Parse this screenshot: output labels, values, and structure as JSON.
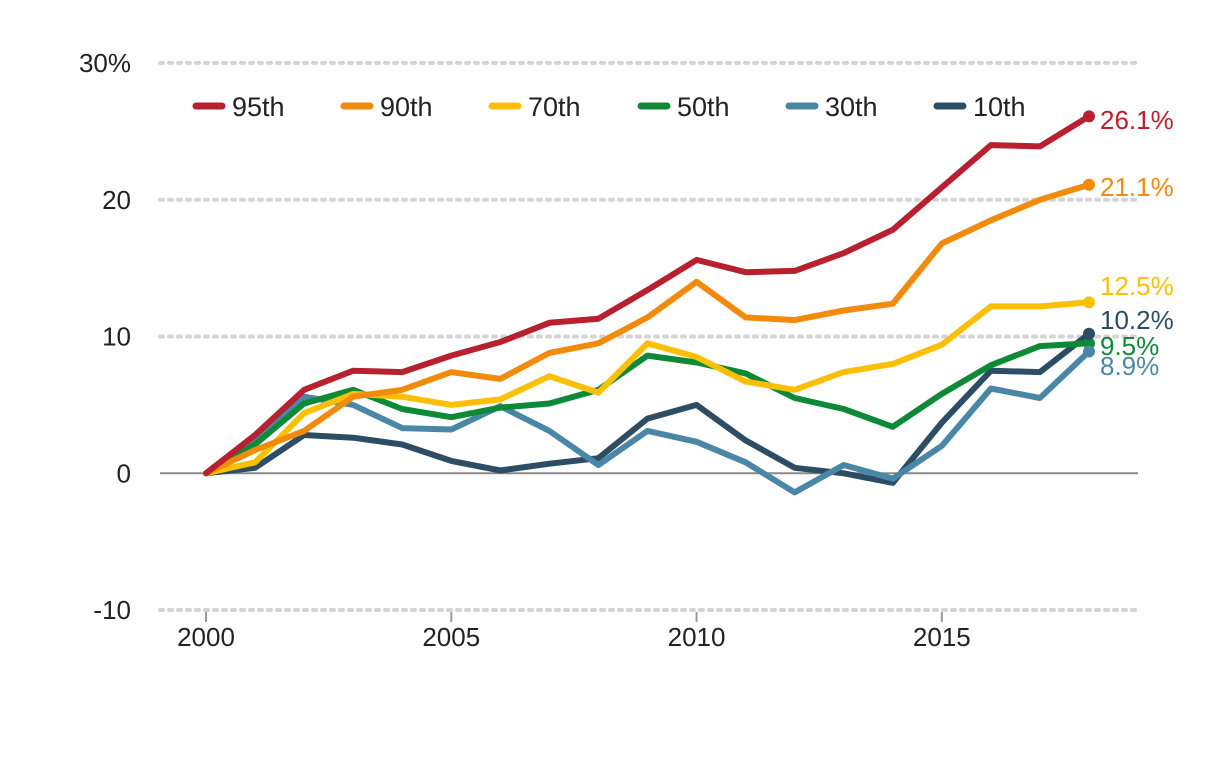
{
  "chart_data": {
    "type": "line",
    "title": "",
    "xlabel": "",
    "ylabel": "",
    "x": [
      2000,
      2001,
      2002,
      2003,
      2004,
      2005,
      2006,
      2007,
      2008,
      2009,
      2010,
      2011,
      2012,
      2013,
      2014,
      2015,
      2016,
      2017,
      2018
    ],
    "xlim": [
      1999,
      2019
    ],
    "ylim": [
      -10,
      30
    ],
    "x_ticks": [
      {
        "value": 2000,
        "label": "2000"
      },
      {
        "value": 2005,
        "label": "2005"
      },
      {
        "value": 2010,
        "label": "2010"
      },
      {
        "value": 2015,
        "label": "2015"
      }
    ],
    "y_ticks": [
      {
        "value": 30,
        "label": "30%"
      },
      {
        "value": 20,
        "label": "20"
      },
      {
        "value": 10,
        "label": "10"
      },
      {
        "value": 0,
        "label": "0"
      },
      {
        "value": -10,
        "label": "-10"
      }
    ],
    "grid": true,
    "legend_position": "top-left",
    "series": [
      {
        "name": "95th",
        "color": "#b8202f",
        "end_label": "26.1%",
        "values": [
          0,
          2.8,
          6.1,
          7.5,
          7.4,
          8.6,
          9.6,
          11.0,
          11.3,
          13.4,
          15.6,
          14.7,
          14.8,
          16.1,
          17.8,
          20.9,
          24.0,
          23.9,
          26.1
        ]
      },
      {
        "name": "90th",
        "color": "#f28a0c",
        "end_label": "21.1%",
        "values": [
          0,
          1.7,
          3.1,
          5.6,
          6.1,
          7.4,
          6.9,
          8.8,
          9.5,
          11.4,
          14.0,
          11.4,
          11.2,
          11.9,
          12.4,
          16.8,
          18.5,
          20.0,
          21.1
        ]
      },
      {
        "name": "70th",
        "color": "#fbbf05",
        "end_label": "12.5%",
        "values": [
          0,
          0.8,
          4.4,
          5.8,
          5.6,
          5.0,
          5.4,
          7.1,
          5.9,
          9.5,
          8.5,
          6.7,
          6.1,
          7.4,
          8.0,
          9.4,
          12.2,
          12.2,
          12.5
        ]
      },
      {
        "name": "50th",
        "color": "#0e8a37",
        "end_label": "9.5%",
        "values": [
          0,
          2.1,
          5.1,
          6.1,
          4.7,
          4.1,
          4.8,
          5.1,
          6.1,
          8.6,
          8.1,
          7.3,
          5.5,
          4.7,
          3.4,
          5.8,
          7.9,
          9.3,
          9.5
        ]
      },
      {
        "name": "30th",
        "color": "#4a87a7",
        "end_label": "8.9%",
        "values": [
          0,
          2.4,
          5.6,
          5.0,
          3.3,
          3.2,
          4.9,
          3.1,
          0.6,
          3.1,
          2.3,
          0.8,
          -1.4,
          0.6,
          -0.4,
          2.0,
          6.2,
          5.5,
          8.9
        ]
      },
      {
        "name": "10th",
        "color": "#2c4d63",
        "end_label": "10.2%",
        "values": [
          0,
          0.4,
          2.8,
          2.6,
          2.1,
          0.9,
          0.2,
          0.7,
          1.1,
          4.0,
          5.0,
          2.4,
          0.4,
          0.0,
          -0.7,
          3.7,
          7.5,
          7.4,
          10.2
        ]
      }
    ]
  }
}
